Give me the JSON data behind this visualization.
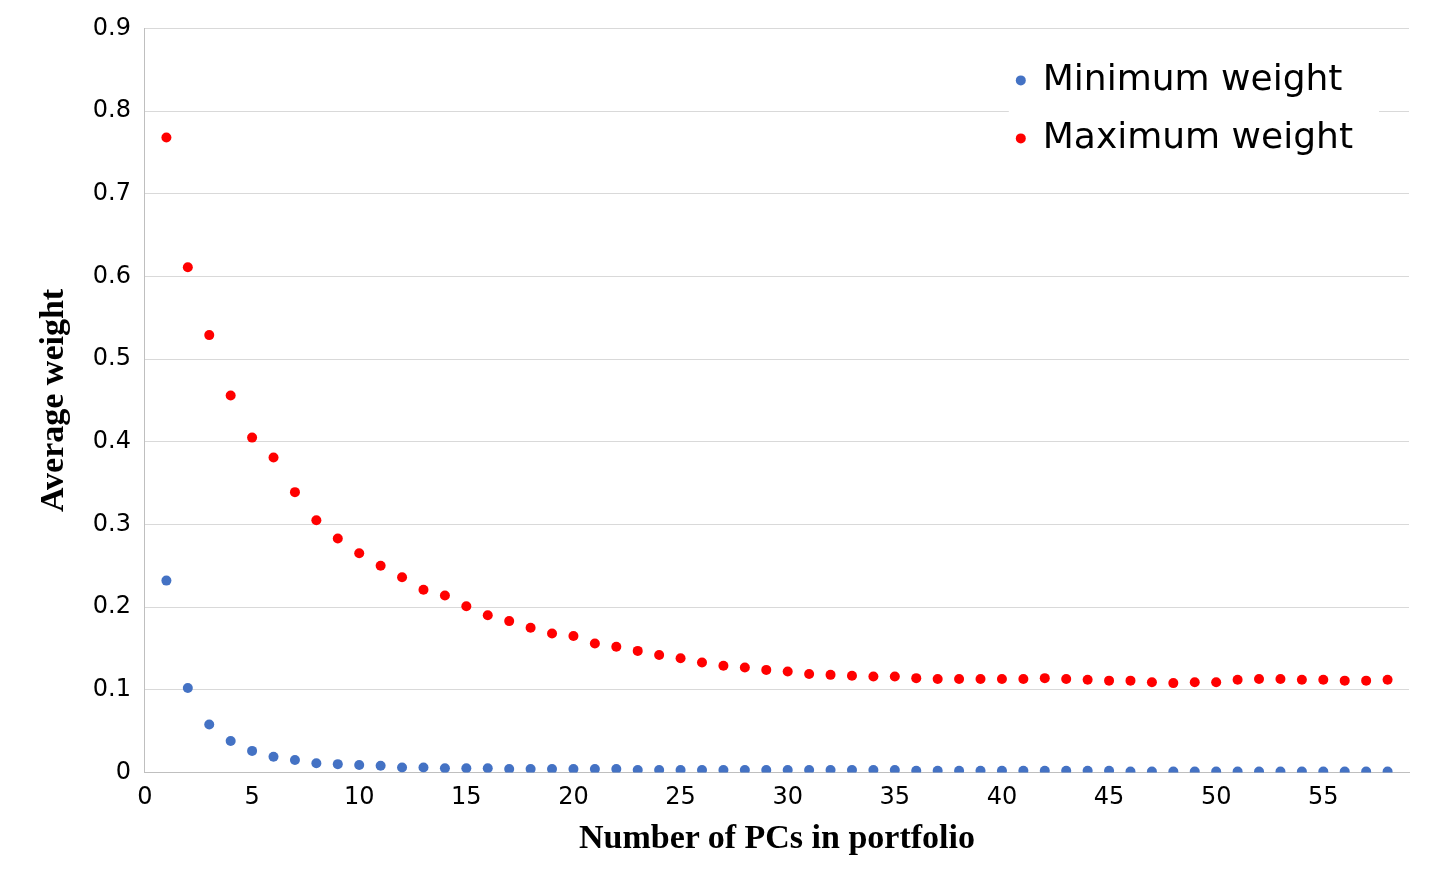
{
  "chart_data": {
    "type": "scatter",
    "xlabel": "Number of PCs in portfolio",
    "ylabel": "Average weight",
    "x": [
      1,
      2,
      3,
      4,
      5,
      6,
      7,
      8,
      9,
      10,
      11,
      12,
      13,
      14,
      15,
      16,
      17,
      18,
      19,
      20,
      21,
      22,
      23,
      24,
      25,
      26,
      27,
      28,
      29,
      30,
      31,
      32,
      33,
      34,
      35,
      36,
      37,
      38,
      39,
      40,
      41,
      42,
      43,
      44,
      45,
      46,
      47,
      48,
      49,
      50,
      51,
      52,
      53,
      54,
      55,
      56,
      57,
      58
    ],
    "series": [
      {
        "name": "Minimum weight",
        "color": "#4472c4",
        "values": [
          0.232,
          0.102,
          0.058,
          0.038,
          0.026,
          0.019,
          0.015,
          0.011,
          0.01,
          0.009,
          0.008,
          0.006,
          0.006,
          0.005,
          0.005,
          0.005,
          0.004,
          0.004,
          0.004,
          0.004,
          0.004,
          0.004,
          0.003,
          0.003,
          0.003,
          0.003,
          0.003,
          0.003,
          0.003,
          0.003,
          0.003,
          0.003,
          0.003,
          0.003,
          0.003,
          0.002,
          0.002,
          0.002,
          0.002,
          0.002,
          0.002,
          0.002,
          0.002,
          0.002,
          0.002,
          0.001,
          0.001,
          0.001,
          0.001,
          0.001,
          0.001,
          0.001,
          0.001,
          0.001,
          0.001,
          0.001,
          0.001,
          0.001
        ]
      },
      {
        "name": "Maximum weight",
        "color": "#ff0000",
        "values": [
          0.768,
          0.611,
          0.529,
          0.456,
          0.405,
          0.381,
          0.339,
          0.305,
          0.283,
          0.265,
          0.25,
          0.236,
          0.221,
          0.214,
          0.201,
          0.19,
          0.183,
          0.175,
          0.168,
          0.165,
          0.156,
          0.152,
          0.147,
          0.142,
          0.138,
          0.133,
          0.129,
          0.127,
          0.124,
          0.122,
          0.119,
          0.118,
          0.117,
          0.116,
          0.116,
          0.114,
          0.113,
          0.113,
          0.113,
          0.113,
          0.113,
          0.114,
          0.113,
          0.112,
          0.111,
          0.111,
          0.109,
          0.108,
          0.109,
          0.109,
          0.112,
          0.113,
          0.113,
          0.112,
          0.112,
          0.111,
          0.111,
          0.112
        ]
      }
    ],
    "xlim": [
      0,
      59
    ],
    "xticks": [
      0,
      5,
      10,
      15,
      20,
      25,
      30,
      35,
      40,
      45,
      50,
      55
    ],
    "ylim": [
      0,
      0.9
    ],
    "yticks": [
      0,
      0.1,
      0.2,
      0.3,
      0.4,
      0.5,
      0.6,
      0.7,
      0.8,
      0.9
    ],
    "grid": "y",
    "legend": "top right",
    "marker": "circle"
  }
}
